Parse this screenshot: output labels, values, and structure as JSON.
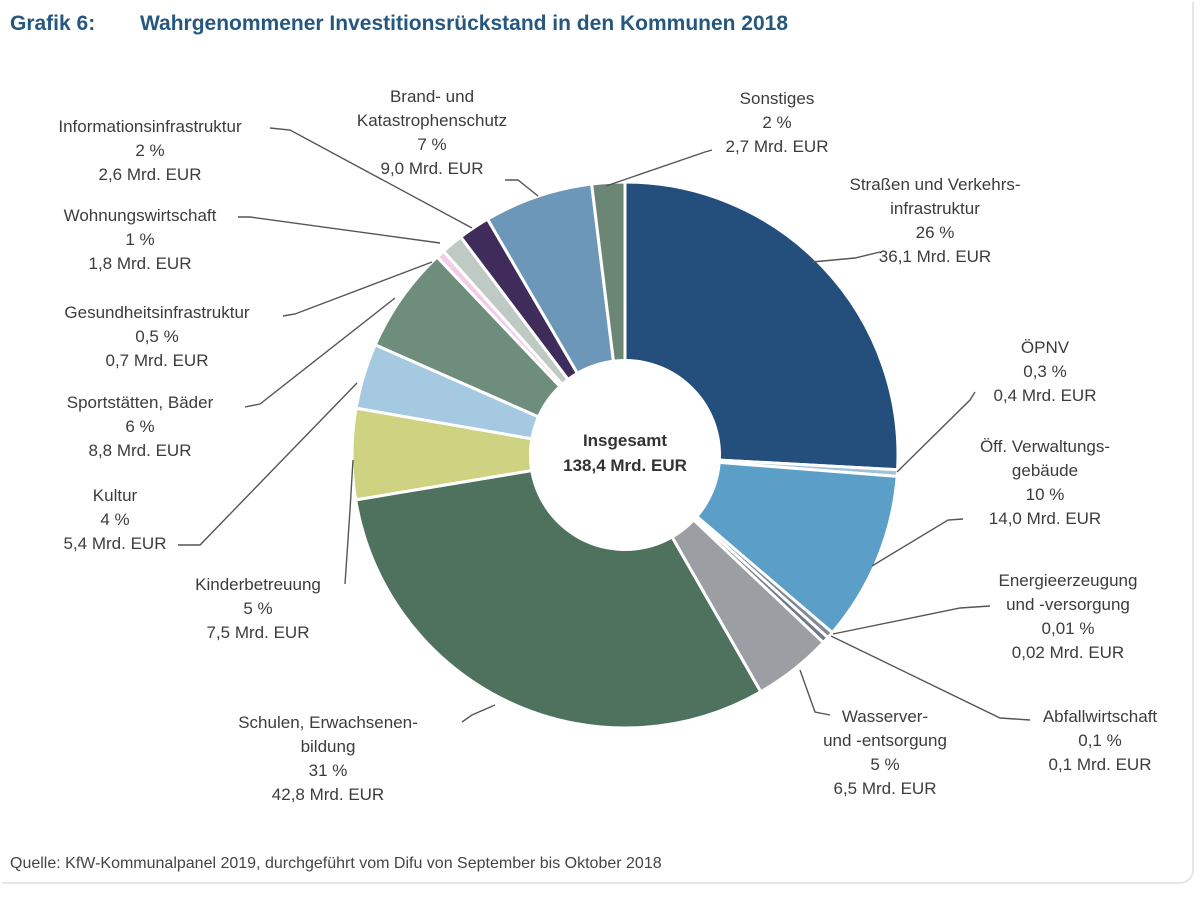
{
  "title": {
    "number": "Grafik 6:",
    "text": "Wahrgenommener Investitionsrückstand in den Kommunen 2018"
  },
  "source": "Quelle: KfW-Kommunalpanel 2019, durchgeführt vom Difu von September bis Oktober 2018",
  "chart_data": {
    "type": "pie",
    "style": "donut",
    "title": "Wahrgenommener Investitionsrückstand in den Kommunen 2018",
    "center_label": [
      "Insgesamt",
      "138,4 Mrd. EUR"
    ],
    "total": 138.4,
    "unit": "Mrd. EUR",
    "slices": [
      {
        "name": "Straßen und Verkehrsinfrastruktur",
        "value": 36.1,
        "color": "#244f7c",
        "label_lines": [
          "Straßen und Verkehrs-",
          "infrastruktur",
          "26 %",
          "36,1 Mrd. EUR"
        ]
      },
      {
        "name": "ÖPNV",
        "value": 0.4,
        "color": "#9cc2dc",
        "label_lines": [
          "ÖPNV",
          "0,3 %",
          "0,4 Mrd. EUR"
        ]
      },
      {
        "name": "Öff. Verwaltungsgebäude",
        "value": 14.0,
        "color": "#5b9ec7",
        "label_lines": [
          "Öff. Verwaltungs-",
          "gebäude",
          "10 %",
          "14,0 Mrd. EUR"
        ]
      },
      {
        "name": "Energieerzeugung und -versorgung",
        "value": 0.02,
        "color": "#7f8a94",
        "label_lines": [
          "Energieerzeugung",
          "und -versorgung",
          "0,01 %",
          "0,02 Mrd. EUR"
        ]
      },
      {
        "name": "Abfallwirtschaft",
        "value": 0.1,
        "color": "#6e7a86",
        "label_lines": [
          "Abfallwirtschaft",
          "0,1 %",
          "0,1 Mrd. EUR"
        ]
      },
      {
        "name": "Wasserver- und -entsorgung",
        "value": 6.5,
        "color": "#9b9fa3",
        "label_lines": [
          "Wasserver-",
          "und -entsorgung",
          "5 %",
          "6,5 Mrd. EUR"
        ]
      },
      {
        "name": "Schulen, Erwachsenenbildung",
        "value": 42.8,
        "color": "#4f725f",
        "label_lines": [
          "Schulen, Erwachsenen-",
          "bildung",
          "31 %",
          "42,8 Mrd. EUR"
        ]
      },
      {
        "name": "Kinderbetreuung",
        "value": 7.5,
        "color": "#cdd381",
        "label_lines": [
          "Kinderbetreuung",
          "5 %",
          "7,5 Mrd. EUR"
        ]
      },
      {
        "name": "Kultur",
        "value": 5.4,
        "color": "#a5c9e1",
        "label_lines": [
          "Kultur",
          "4 %",
          "5,4 Mrd. EUR"
        ]
      },
      {
        "name": "Sportstätten, Bäder",
        "value": 8.8,
        "color": "#6f8d7c",
        "label_lines": [
          "Sportstätten, Bäder",
          "6 %",
          "8,8 Mrd. EUR"
        ]
      },
      {
        "name": "Gesundheitsinfrastruktur",
        "value": 0.7,
        "color": "#f2cde6",
        "label_lines": [
          "Gesundheitsinfrastruktur",
          "0,5 %",
          "0,7 Mrd. EUR"
        ]
      },
      {
        "name": "Wohnungswirtschaft",
        "value": 1.8,
        "color": "#bfcac4",
        "label_lines": [
          "Wohnungswirtschaft",
          "1 %",
          "1,8 Mrd. EUR"
        ]
      },
      {
        "name": "Informationsinfrastruktur",
        "value": 2.6,
        "color": "#3f2c5b",
        "label_lines": [
          "Informationsinfrastruktur",
          "2 %",
          "2,6 Mrd. EUR"
        ]
      },
      {
        "name": "Brand- und Katastrophenschutz",
        "value": 9.0,
        "color": "#6d97b8",
        "label_lines": [
          "Brand- und",
          "Katastrophenschutz",
          "7 %",
          "9,0 Mrd. EUR"
        ]
      },
      {
        "name": "Sonstiges",
        "value": 2.7,
        "color": "#6c8676",
        "label_lines": [
          "Sonstiges",
          "2 %",
          "2,7 Mrd. EUR"
        ]
      }
    ]
  }
}
